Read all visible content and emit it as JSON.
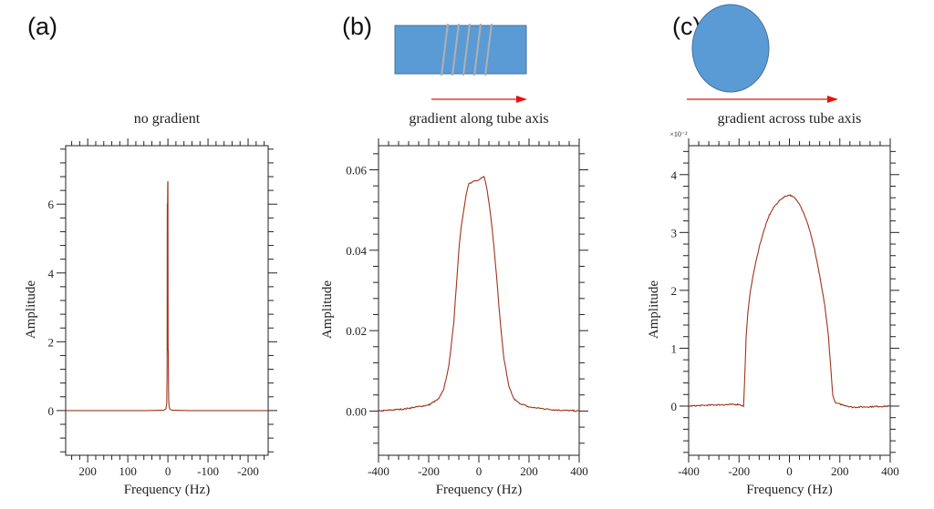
{
  "panel_labels": [
    "(a)",
    "(b)",
    "(c)"
  ],
  "colors": {
    "curve": "#a0341e",
    "axis": "#222222",
    "tube": "#5b9bd5",
    "tube_edge": "#41719c",
    "coil": "#b0b0b0",
    "arrow": "#e81010"
  },
  "chart_data": [
    {
      "type": "line",
      "title": "no gradient",
      "xlabel": "Frequency (Hz)",
      "ylabel": "Amplitude",
      "xlim": [
        255,
        -250
      ],
      "ylim": [
        -1.3,
        7.7
      ],
      "x_reversed": true,
      "xticks": [
        200,
        100,
        0,
        -100,
        -200
      ],
      "xtick_labels": [
        "200",
        "100",
        "0",
        "-100",
        "-200"
      ],
      "x_minor_step": 20,
      "yticks": [
        0,
        2,
        4,
        6
      ],
      "ytick_labels": [
        "0",
        "2",
        "4",
        "6"
      ],
      "y_minor_step": 0.4,
      "y_multiplier": "",
      "series": [
        {
          "x": [
            255,
            150,
            50,
            10,
            5,
            3,
            2,
            1.5,
            1,
            0.5,
            0,
            -0.5,
            -1,
            -1.5,
            -2,
            -3,
            -5,
            -10,
            -50,
            -150,
            -250
          ],
          "y": [
            0,
            0,
            0,
            0.01,
            0.05,
            0.2,
            1.05,
            6.0,
            6.0,
            6.65,
            6.65,
            1.75,
            1.75,
            0.65,
            0.3,
            0.12,
            0.04,
            0.01,
            0,
            0,
            0
          ]
        }
      ]
    },
    {
      "type": "line",
      "title": "gradient along tube axis",
      "xlabel": "Frequency (Hz)",
      "ylabel": "Amplitude",
      "xlim": [
        -400,
        400
      ],
      "ylim": [
        -0.011,
        0.066
      ],
      "xticks": [
        -400,
        -200,
        0,
        200,
        400
      ],
      "xtick_labels": [
        "-400",
        "-200",
        "0",
        "200",
        "400"
      ],
      "x_minor_step": 40,
      "yticks": [
        0,
        0.02,
        0.04,
        0.06
      ],
      "ytick_labels": [
        "0.00",
        "0.02",
        "0.04",
        "0.06"
      ],
      "y_minor_step": 0.004,
      "y_multiplier": "",
      "series": [
        {
          "x": [
            -400,
            -300,
            -200,
            -160,
            -140,
            -120,
            -100,
            -90,
            -80,
            -70,
            -60,
            -50,
            -40,
            -20,
            0,
            10,
            20,
            30,
            40,
            50,
            60,
            70,
            80,
            90,
            100,
            120,
            140,
            160,
            200,
            300,
            400
          ],
          "y": [
            0,
            0.0005,
            0.0015,
            0.003,
            0.0055,
            0.011,
            0.022,
            0.031,
            0.04,
            0.046,
            0.05,
            0.054,
            0.0565,
            0.0572,
            0.0575,
            0.058,
            0.0585,
            0.056,
            0.052,
            0.047,
            0.041,
            0.034,
            0.026,
            0.019,
            0.013,
            0.006,
            0.003,
            0.002,
            0.001,
            0.0003,
            0
          ]
        }
      ]
    },
    {
      "type": "line",
      "title": "gradient across tube axis",
      "xlabel": "Frequency (Hz)",
      "ylabel": "Amplitude",
      "xlim": [
        -400,
        400
      ],
      "ylim": [
        -0.85,
        4.5
      ],
      "xticks": [
        -400,
        -200,
        0,
        200,
        400
      ],
      "xtick_labels": [
        "-400",
        "-200",
        "0",
        "200",
        "400"
      ],
      "x_minor_step": 40,
      "yticks": [
        0,
        1,
        2,
        3,
        4
      ],
      "ytick_labels": [
        "0",
        "1",
        "2",
        "3",
        "4"
      ],
      "y_minor_step": 0.2,
      "y_multiplier": "×10⁻²",
      "series": [
        {
          "x": [
            -400,
            -300,
            -200,
            -182,
            -178,
            -172,
            -165,
            -155,
            -140,
            -120,
            -100,
            -80,
            -60,
            -40,
            -20,
            0,
            20,
            40,
            60,
            80,
            100,
            120,
            140,
            155,
            165,
            172,
            178,
            185,
            250,
            400
          ],
          "y": [
            0,
            0.02,
            0.03,
            0.0,
            0.4,
            1.2,
            1.6,
            2.0,
            2.35,
            2.75,
            3.05,
            3.3,
            3.45,
            3.55,
            3.62,
            3.65,
            3.6,
            3.5,
            3.3,
            3.05,
            2.7,
            2.25,
            1.75,
            1.2,
            0.6,
            0.2,
            0.1,
            0.05,
            -0.02,
            0
          ]
        }
      ]
    }
  ]
}
